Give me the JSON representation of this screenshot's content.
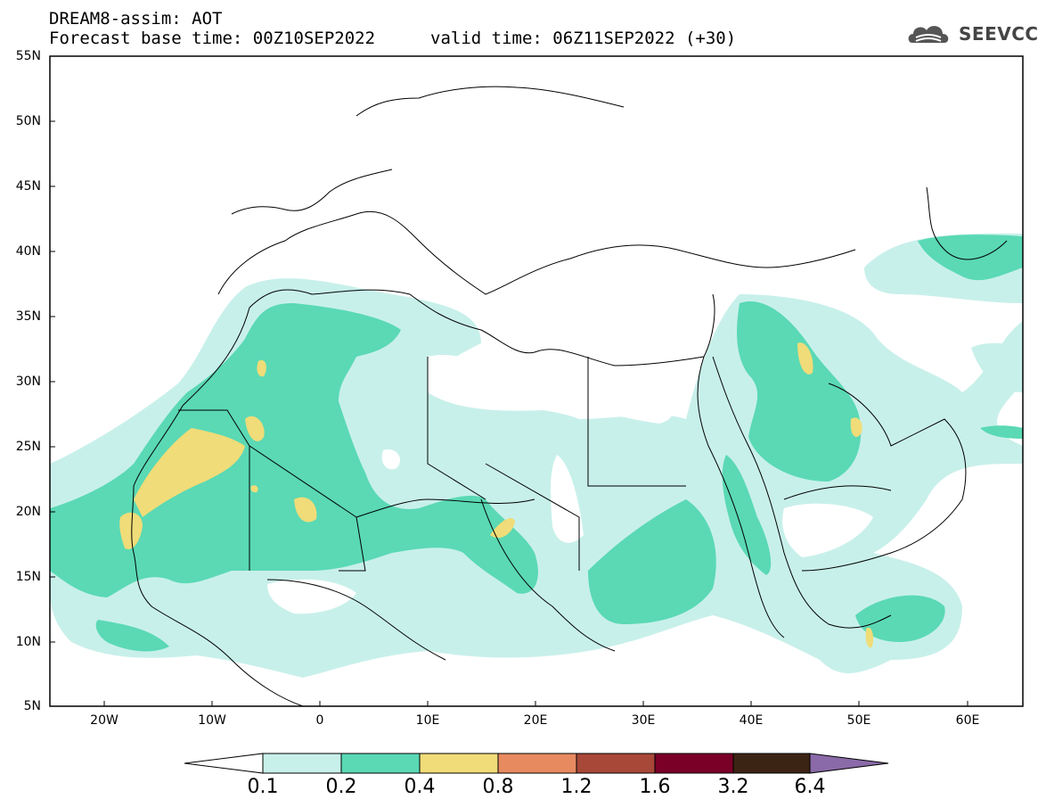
{
  "header": {
    "line1": "DREAM8-assim: AOT",
    "line2": "Forecast base time: 00Z10SEP2022",
    "valid": "valid time: 06Z11SEP2022 (+30)",
    "logo_text": "SEEVCCC"
  },
  "map": {
    "lon_range": [
      -25,
      65
    ],
    "lat_range": [
      5,
      55
    ],
    "lat_labels": [
      "55N",
      "50N",
      "45N",
      "40N",
      "35N",
      "30N",
      "25N",
      "20N",
      "15N",
      "10N",
      "5N"
    ],
    "lon_labels": [
      "20W",
      "10W",
      "0",
      "10E",
      "20E",
      "30E",
      "40E",
      "50E",
      "60E"
    ],
    "field": "Aerosol Optical Thickness"
  },
  "colorbar": {
    "labels": [
      "0.1",
      "0.2",
      "0.4",
      "0.8",
      "1.2",
      "1.6",
      "3.2",
      "6.4"
    ],
    "colors": [
      "#c8f0ea",
      "#5ad9b4",
      "#f0dc78",
      "#e88a60",
      "#a84838",
      "#7a0028",
      "#3c2414",
      "#8a6aa8"
    ],
    "outline_color": "#000000"
  },
  "colors": {
    "level_0_1": "#c8f0ea",
    "level_0_2": "#5ad9b4",
    "level_0_4": "#f0dc78",
    "land_border": "#000000"
  }
}
